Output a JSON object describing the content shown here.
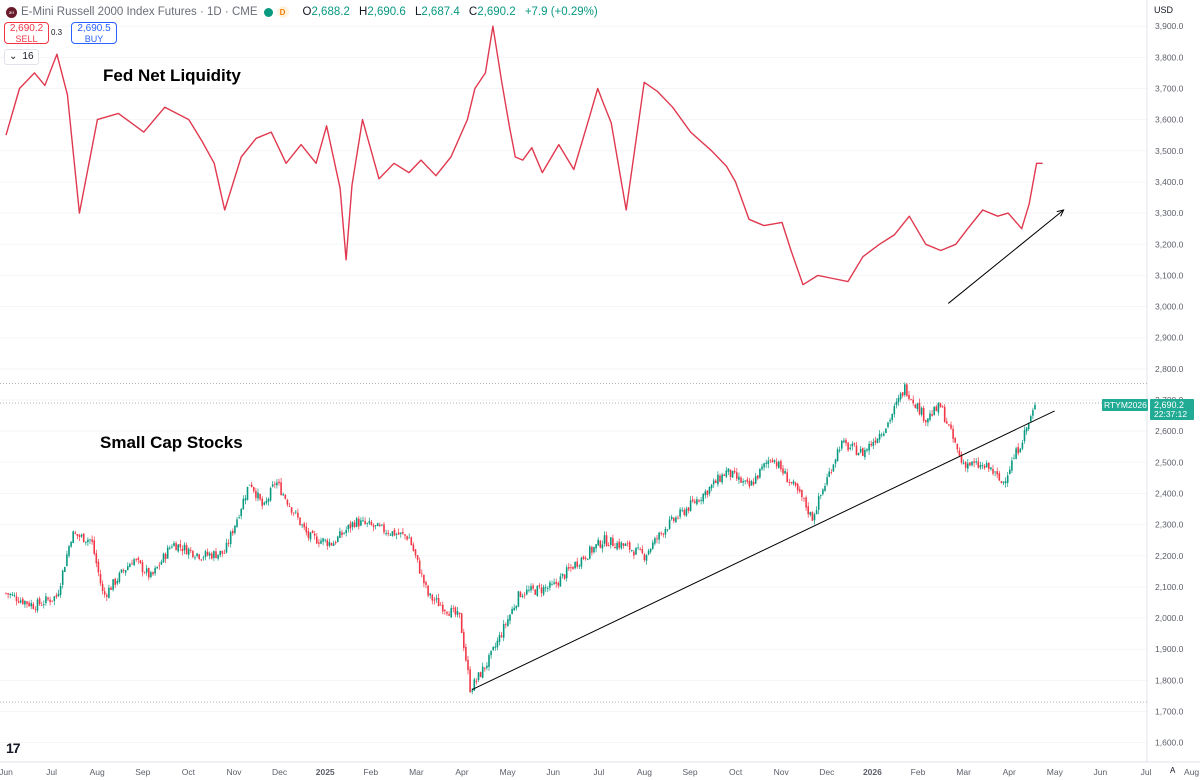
{
  "header": {
    "logo_text": "2!!",
    "symbol_title": "E-Mini Russell 2000 Index Futures",
    "interval": "1D",
    "exchange": "CME",
    "delay_badge": "D",
    "ohlc": [
      {
        "key": "O",
        "value": "2,688.2"
      },
      {
        "key": "H",
        "value": "2,690.6"
      },
      {
        "key": "L",
        "value": "2,687.4"
      },
      {
        "key": "C",
        "value": "2,690.2"
      }
    ],
    "change": "+7.9 (+0.29%)"
  },
  "trade": {
    "sell_price": "2,690.2",
    "sell_label": "SELL",
    "spread": "0.3",
    "buy_price": "2,690.5",
    "buy_label": "BUY"
  },
  "volume_toggle": {
    "chevron": "⌄",
    "value": "16"
  },
  "annotations": {
    "top": "Fed Net Liquidity",
    "bottom": "Small Cap Stocks"
  },
  "price_scale": {
    "currency": "USD",
    "ticks": [
      "3,900.0",
      "3,800.0",
      "3,700.0",
      "3,600.0",
      "3,500.0",
      "3,400.0",
      "3,300.0",
      "3,200.0",
      "3,100.0",
      "3,000.0",
      "2,900.0",
      "2,800.0",
      "2,700.0",
      "2,600.0",
      "2,500.0",
      "2,400.0",
      "2,300.0",
      "2,200.0",
      "2,100.0",
      "2,000.0",
      "1,900.0",
      "1,800.0",
      "1,700.0",
      "1,600.0"
    ]
  },
  "time_axis": [
    "Jun",
    "Jul",
    "Aug",
    "Sep",
    "Oct",
    "Nov",
    "Dec",
    "2025",
    "Feb",
    "Mar",
    "Apr",
    "May",
    "Jun",
    "Jul",
    "Aug",
    "Sep",
    "Oct",
    "Nov",
    "Dec",
    "2026",
    "Feb",
    "Mar",
    "Apr",
    "May",
    "Jun",
    "Jul",
    "Aug"
  ],
  "last_price": {
    "symbol": "RTYM2026",
    "price": "2,690.2",
    "countdown": "22:37:12"
  },
  "footer": {
    "tv_logo": "17",
    "auto_label": "A"
  },
  "colors": {
    "liquidity_line": "#e0394f",
    "up": "#089981",
    "down": "#f23645",
    "trendline": "#000000",
    "badge": "#22ab94"
  },
  "chart_data": [
    {
      "type": "line",
      "series": [
        {
          "name": "Fed Net Liquidity",
          "x": [
            "2024-06-01",
            "2024-06-10",
            "2024-06-20",
            "2024-06-27",
            "2024-07-05",
            "2024-07-12",
            "2024-07-20",
            "2024-08-01",
            "2024-08-15",
            "2024-09-01",
            "2024-09-15",
            "2024-10-01",
            "2024-10-10",
            "2024-10-18",
            "2024-10-25",
            "2024-11-05",
            "2024-11-15",
            "2024-11-25",
            "2024-12-05",
            "2024-12-15",
            "2024-12-25",
            "2025-01-01",
            "2025-01-10",
            "2025-01-14",
            "2025-01-18",
            "2025-01-25",
            "2025-02-05",
            "2025-02-15",
            "2025-02-25",
            "2025-03-05",
            "2025-03-15",
            "2025-03-25",
            "2025-04-05",
            "2025-04-10",
            "2025-04-17",
            "2025-04-22",
            "2025-04-28",
            "2025-05-03",
            "2025-05-07",
            "2025-05-12",
            "2025-05-18",
            "2025-05-25",
            "2025-06-05",
            "2025-06-15",
            "2025-06-25",
            "2025-07-01",
            "2025-07-05",
            "2025-07-10",
            "2025-07-20",
            "2025-08-01",
            "2025-08-10",
            "2025-08-20",
            "2025-09-01",
            "2025-09-15",
            "2025-09-25",
            "2025-10-01",
            "2025-10-10",
            "2025-10-20",
            "2025-11-01",
            "2025-11-07",
            "2025-11-15",
            "2025-11-25",
            "2025-12-05",
            "2025-12-15",
            "2025-12-25",
            "2026-01-05",
            "2026-01-15",
            "2026-01-25",
            "2026-02-05",
            "2026-02-15",
            "2026-02-25",
            "2026-03-05",
            "2026-03-15",
            "2026-03-25",
            "2026-04-01",
            "2026-04-10",
            "2026-04-15",
            "2026-04-20",
            "2026-04-24"
          ],
          "y": [
            3550,
            3700,
            3750,
            3710,
            3810,
            3680,
            3300,
            3600,
            3620,
            3560,
            3640,
            3600,
            3530,
            3460,
            3310,
            3480,
            3540,
            3560,
            3460,
            3520,
            3460,
            3580,
            3380,
            3150,
            3390,
            3600,
            3410,
            3460,
            3430,
            3470,
            3420,
            3480,
            3600,
            3700,
            3750,
            3900,
            3720,
            3580,
            3480,
            3470,
            3510,
            3430,
            3520,
            3440,
            3600,
            3700,
            3650,
            3590,
            3310,
            3720,
            3690,
            3640,
            3560,
            3500,
            3450,
            3400,
            3280,
            3260,
            3270,
            3180,
            3070,
            3100,
            3090,
            3080,
            3160,
            3200,
            3230,
            3290,
            3200,
            3180,
            3200,
            3250,
            3310,
            3290,
            3300,
            3250,
            3330,
            3460,
            3460
          ]
        }
      ],
      "y_axis": "shared price scale (annotation overlay)"
    },
    {
      "type": "candlestick",
      "series": [
        {
          "name": "RTYM2026",
          "anchors": [
            {
              "date": "2024-06-01",
              "close": 2080
            },
            {
              "date": "2024-06-20",
              "close": 2040
            },
            {
              "date": "2024-07-05",
              "close": 2070
            },
            {
              "date": "2024-07-15",
              "close": 2270
            },
            {
              "date": "2024-07-28",
              "close": 2250
            },
            {
              "date": "2024-08-05",
              "close": 2070
            },
            {
              "date": "2024-08-25",
              "close": 2190
            },
            {
              "date": "2024-09-06",
              "close": 2130
            },
            {
              "date": "2024-09-20",
              "close": 2240
            },
            {
              "date": "2024-10-10",
              "close": 2200
            },
            {
              "date": "2024-10-25",
              "close": 2210
            },
            {
              "date": "2024-11-11",
              "close": 2440
            },
            {
              "date": "2024-11-20",
              "close": 2350
            },
            {
              "date": "2024-11-28",
              "close": 2440
            },
            {
              "date": "2024-12-20",
              "close": 2260
            },
            {
              "date": "2025-01-05",
              "close": 2240
            },
            {
              "date": "2025-01-20",
              "close": 2310
            },
            {
              "date": "2025-02-10",
              "close": 2280
            },
            {
              "date": "2025-02-25",
              "close": 2260
            },
            {
              "date": "2025-03-10",
              "close": 2070
            },
            {
              "date": "2025-03-31",
              "close": 2000
            },
            {
              "date": "2025-04-07",
              "close": 1770
            },
            {
              "date": "2025-04-20",
              "close": 1870
            },
            {
              "date": "2025-05-10",
              "close": 2080
            },
            {
              "date": "2025-06-01",
              "close": 2100
            },
            {
              "date": "2025-06-15",
              "close": 2170
            },
            {
              "date": "2025-07-05",
              "close": 2250
            },
            {
              "date": "2025-07-20",
              "close": 2230
            },
            {
              "date": "2025-08-01",
              "close": 2200
            },
            {
              "date": "2025-08-15",
              "close": 2290
            },
            {
              "date": "2025-09-10",
              "close": 2400
            },
            {
              "date": "2025-09-25",
              "close": 2470
            },
            {
              "date": "2025-10-10",
              "close": 2420
            },
            {
              "date": "2025-10-25",
              "close": 2520
            },
            {
              "date": "2025-11-15",
              "close": 2380
            },
            {
              "date": "2025-11-21",
              "close": 2320
            },
            {
              "date": "2025-12-10",
              "close": 2560
            },
            {
              "date": "2025-12-25",
              "close": 2530
            },
            {
              "date": "2026-01-10",
              "close": 2620
            },
            {
              "date": "2026-01-22",
              "close": 2740
            },
            {
              "date": "2026-02-05",
              "close": 2640
            },
            {
              "date": "2026-02-15",
              "close": 2680
            },
            {
              "date": "2026-03-01",
              "close": 2500
            },
            {
              "date": "2026-03-20",
              "close": 2480
            },
            {
              "date": "2026-03-28",
              "close": 2430
            },
            {
              "date": "2026-04-10",
              "close": 2570
            },
            {
              "date": "2026-04-20",
              "close": 2690
            }
          ]
        }
      ],
      "trendlines": [
        {
          "from": {
            "date": "2025-04-08",
            "price": 1770
          },
          "to": {
            "date": "2026-05-02",
            "price": 2665
          }
        },
        {
          "from": {
            "date": "2026-02-20",
            "price": 3010
          },
          "to": {
            "date": "2026-05-08",
            "price": 3310
          },
          "arrow": true
        }
      ],
      "dotted_lines": [
        2753,
        2690.2,
        1730
      ]
    }
  ]
}
